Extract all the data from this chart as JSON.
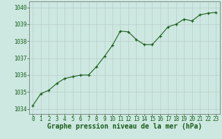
{
  "x": [
    0,
    1,
    2,
    3,
    4,
    5,
    6,
    7,
    8,
    9,
    10,
    11,
    12,
    13,
    14,
    15,
    16,
    17,
    18,
    19,
    20,
    21,
    22,
    23
  ],
  "y": [
    1034.2,
    1034.9,
    1035.1,
    1035.5,
    1035.8,
    1035.9,
    1036.0,
    1036.0,
    1036.5,
    1037.1,
    1037.75,
    1038.6,
    1038.55,
    1038.1,
    1037.8,
    1037.8,
    1038.3,
    1038.85,
    1039.0,
    1039.3,
    1039.2,
    1039.55,
    1039.65,
    1039.7
  ],
  "line_color": "#1a5c1a",
  "marker": "+",
  "marker_size": 3,
  "bg_color": "#cce8e0",
  "grid_color": "#bbcccc",
  "xlabel": "Graphe pression niveau de la mer (hPa)",
  "xlabel_fontsize": 7,
  "xlabel_color": "#1a5c1a",
  "yticks": [
    1034,
    1035,
    1036,
    1037,
    1038,
    1039,
    1040
  ],
  "xtick_labels": [
    "0",
    "1",
    "2",
    "3",
    "4",
    "5",
    "6",
    "7",
    "8",
    "9",
    "10",
    "11",
    "12",
    "13",
    "14",
    "15",
    "16",
    "17",
    "18",
    "19",
    "20",
    "21",
    "22",
    "23"
  ],
  "ylim": [
    1033.7,
    1040.35
  ],
  "xlim": [
    -0.5,
    23.5
  ],
  "ytick_fontsize": 5.5,
  "xtick_fontsize": 5.5
}
